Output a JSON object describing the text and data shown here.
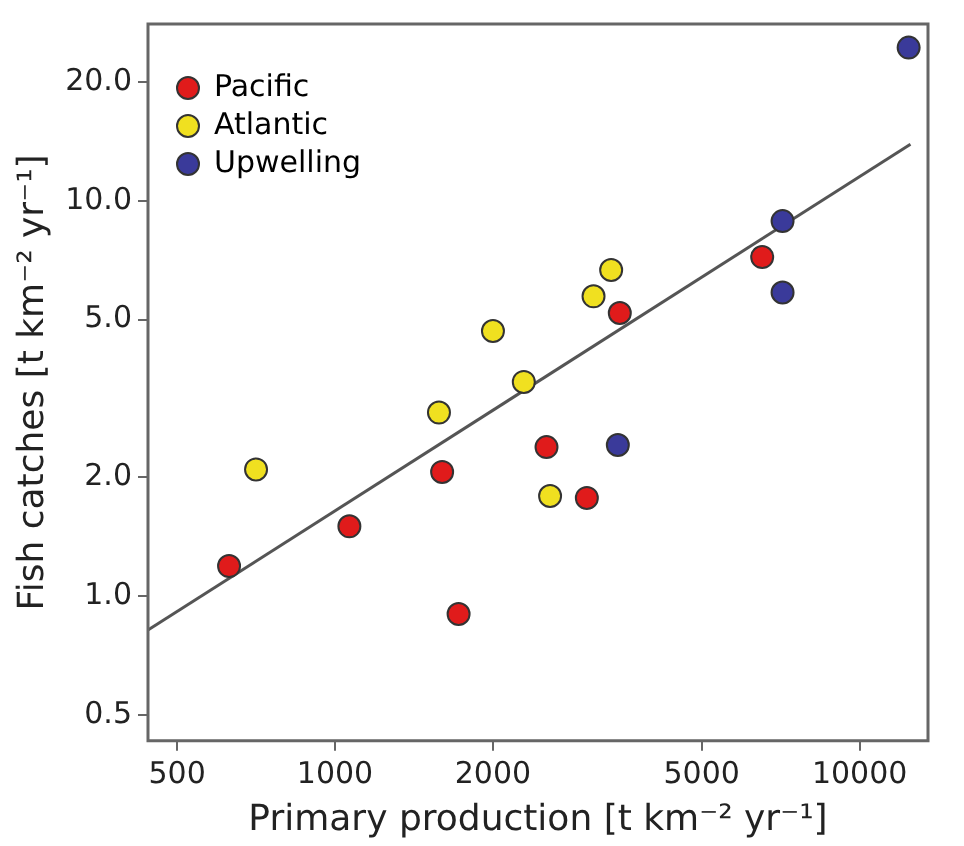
{
  "chart_data": {
    "type": "scatter",
    "xlabel": "Primary production [t km⁻² yr⁻¹]",
    "ylabel": "Fish catches [t km⁻² yr⁻¹]",
    "log": "xy",
    "xlim": [
      440,
      13500
    ],
    "ylim": [
      0.43,
      28
    ],
    "xticks": [
      500,
      1000,
      2000,
      5000,
      10000
    ],
    "yticks": [
      0.5,
      {
        "value": 1,
        "label": "1.0"
      },
      {
        "value": 2,
        "label": "2.0"
      },
      {
        "value": 5,
        "label": "5.0"
      },
      {
        "value": 10,
        "label": "10.0"
      },
      {
        "value": 20,
        "label": "20.0"
      }
    ],
    "grid": false,
    "legend": "top left",
    "marker": "circle",
    "series": [
      {
        "name": "Pacific",
        "color": "#e01b1b",
        "x": [
          628,
          1065,
          1600,
          1720,
          2530,
          3020,
          3490,
          6520
        ],
        "values": [
          1.19,
          1.5,
          2.06,
          0.9,
          2.38,
          1.77,
          5.2,
          7.2
        ]
      },
      {
        "name": "Atlantic",
        "color": "#f0e020",
        "x": [
          707,
          1578,
          2000,
          2290,
          2570,
          3110,
          3360
        ],
        "values": [
          2.09,
          2.91,
          4.68,
          3.48,
          1.79,
          5.73,
          6.68
        ]
      },
      {
        "name": "Upwelling",
        "color": "#3a3a9a",
        "x": [
          3460,
          7130,
          7130,
          12400
        ],
        "values": [
          2.41,
          8.88,
          5.86,
          24.4
        ]
      },
      {
        "type": "line",
        "color": "#555555",
        "marker": "none",
        "x": [
          440,
          12500
        ],
        "values": [
          0.82,
          13.9
        ]
      }
    ]
  }
}
